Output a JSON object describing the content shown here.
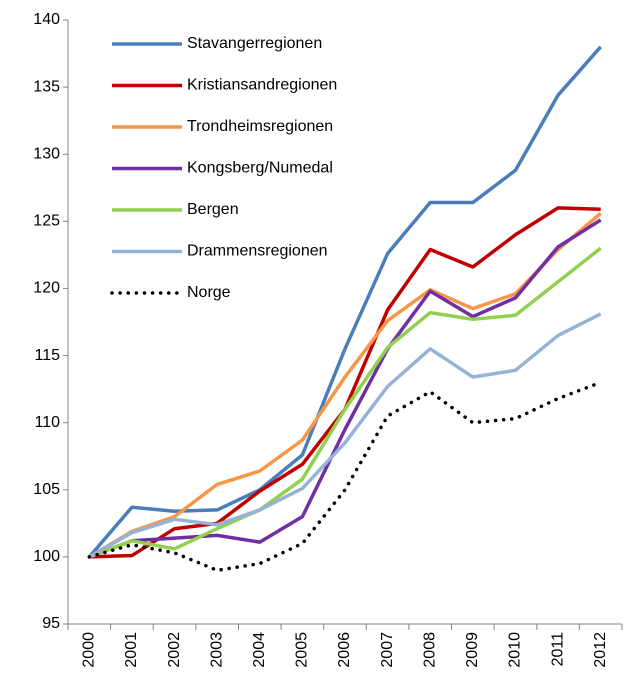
{
  "chart_data": {
    "type": "line",
    "categories": [
      "2000",
      "2001",
      "2002",
      "2003",
      "2004",
      "2005",
      "2006",
      "2007",
      "2008",
      "2009",
      "2010",
      "2011",
      "2012"
    ],
    "series": [
      {
        "name": "Stavangerregionen",
        "color": "#4a7ebb",
        "values": [
          100,
          103.7,
          103.4,
          103.5,
          105,
          107.6,
          115.5,
          122.6,
          126.4,
          126.4,
          128.8,
          134.4,
          138
        ]
      },
      {
        "name": "Kristiansandregionen",
        "color": "#c00000",
        "values": [
          100,
          100.1,
          102.1,
          102.5,
          104.9,
          106.9,
          111,
          118.4,
          122.9,
          121.6,
          124,
          126,
          125.9
        ]
      },
      {
        "name": "Trondheimsregionen",
        "color": "#f79646",
        "values": [
          100,
          101.9,
          103,
          105.4,
          106.4,
          108.7,
          113.4,
          117.6,
          119.9,
          118.5,
          119.6,
          122.9,
          125.6
        ]
      },
      {
        "name": "Kongsberg/Numedal",
        "color": "#7030a0",
        "values": [
          100,
          101.2,
          101.4,
          101.6,
          101.1,
          103,
          109.5,
          115.5,
          119.8,
          117.9,
          119.3,
          123.1,
          125.1
        ]
      },
      {
        "name": "Bergen",
        "color": "#92d050",
        "values": [
          100,
          101.2,
          100.6,
          102.1,
          103.5,
          105.8,
          111,
          115.6,
          118.2,
          117.7,
          118,
          120.5,
          123
        ]
      },
      {
        "name": "Drammensregionen",
        "color": "#95b3d7",
        "values": [
          100,
          101.8,
          102.8,
          102.4,
          103.5,
          105.1,
          108.5,
          112.7,
          115.5,
          113.4,
          113.9,
          116.5,
          118.1
        ]
      },
      {
        "name": "Norge",
        "color": "#000000",
        "style": "dotted",
        "values": [
          100,
          100.9,
          100.3,
          99,
          99.5,
          101,
          105,
          110.5,
          112.3,
          110,
          110.3,
          111.8,
          113
        ]
      }
    ],
    "ylim": [
      95,
      140
    ],
    "yticks": [
      95,
      100,
      105,
      110,
      115,
      120,
      125,
      130,
      135,
      140
    ],
    "legend": "top-left",
    "grid": false
  }
}
